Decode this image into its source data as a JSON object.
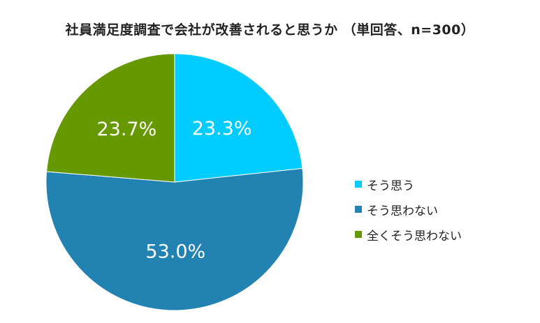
{
  "chart_data": {
    "type": "pie",
    "title": "社員満足度調査で会社が改善されると思うか （単回答、n=300）",
    "slices": [
      {
        "label": "そう思う",
        "value": 23.3,
        "value_label": "23.3%",
        "color": "#00CCFF"
      },
      {
        "label": "そう思わない",
        "value": 53.0,
        "value_label": "53.0%",
        "color": "#2283B3"
      },
      {
        "label": "全くそう思わない",
        "value": 23.7,
        "value_label": "23.7%",
        "color": "#669900"
      }
    ],
    "start_angle": "12 o'clock",
    "direction": "clockwise",
    "legend_position": "right",
    "data_label_color": "#FFFFFF"
  }
}
